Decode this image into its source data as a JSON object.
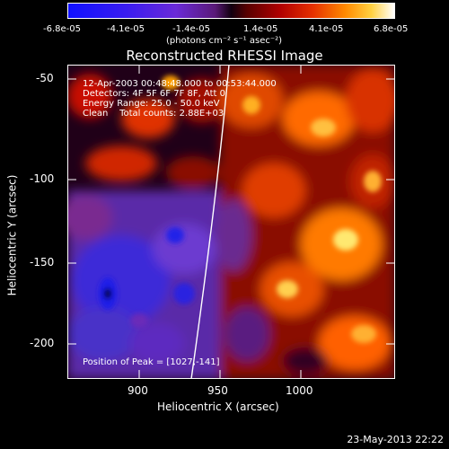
{
  "colorbar": {
    "ticks": [
      "-6.8e-05",
      "-4.1e-05",
      "-1.4e-05",
      "1.4e-05",
      "4.1e-05",
      "6.8e-05"
    ],
    "units": "(photons cm⁻² s⁻¹ asec⁻²)"
  },
  "plot": {
    "title": "Reconstructed RHESSI Image",
    "xlabel": "Heliocentric X (arcsec)",
    "ylabel": "Heliocentric Y (arcsec)",
    "x_ticks": [
      "900",
      "950",
      "1000"
    ],
    "y_ticks": [
      "-50",
      "-100",
      "-150",
      "-200"
    ]
  },
  "annotation": {
    "time": "12-Apr-2003 00:48:48.000 to 00:53:44.000",
    "detectors": "Detectors: 4F 5F 6F 7F 8F, Att 0",
    "energy": "Energy Range: 25.0 - 50.0 keV",
    "clean": "Clean    Total counts: 2.88E+03",
    "peak": "Position of Peak = [1027,-141]"
  },
  "footer": {
    "date": "23-May-2013 22:22"
  }
}
